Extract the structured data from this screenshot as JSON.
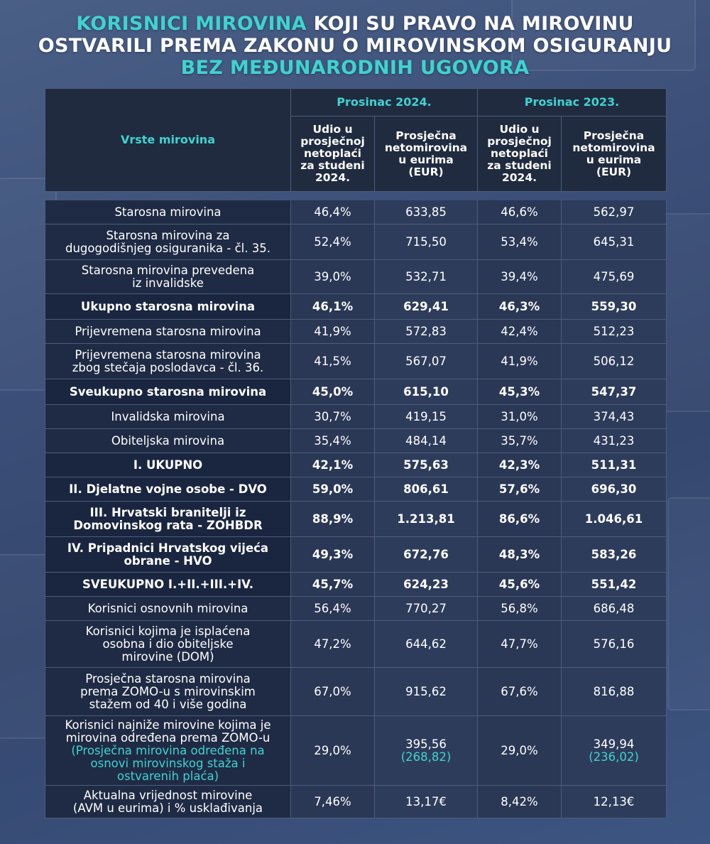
{
  "title": {
    "line1_accent": "KORISNICI MIROVINA",
    "line1_rest": " KOJI SU PRAVO NA MIROVINU",
    "line2": "OSTVARILI PREMA ZAKONU O MIROVINSKOM OSIGURANJU",
    "line3_accent": "BEZ MEĐUNARODNIH UGOVORA"
  },
  "header": {
    "vrste": "Vrste mirovina",
    "period1": "Prosinac 2024.",
    "period2": "Prosinac 2023.",
    "udio_lines": [
      "Udio u",
      "prosječnoj",
      "netoplaći",
      "za studeni",
      "2024."
    ],
    "prosj_lines": [
      "Prosječna",
      "netomirovina",
      "u eurima",
      "(EUR)"
    ]
  },
  "rows": [
    {
      "label": [
        "Starosna mirovina"
      ],
      "u24": "46,4%",
      "p24": "633,85",
      "u23": "46,6%",
      "p23": "562,97",
      "bold": false
    },
    {
      "label": [
        "Starosna mirovina za",
        "dugogodišnjeg osiguranika - čl. 35."
      ],
      "u24": "52,4%",
      "p24": "715,50",
      "u23": "53,4%",
      "p23": "645,31",
      "bold": false
    },
    {
      "label": [
        "Starosna mirovina prevedena",
        "iz invalidske"
      ],
      "u24": "39,0%",
      "p24": "532,71",
      "u23": "39,4%",
      "p23": "475,69",
      "bold": false
    },
    {
      "label": [
        "Ukupno starosna mirovina"
      ],
      "u24": "46,1%",
      "p24": "629,41",
      "u23": "46,3%",
      "p23": "559,30",
      "bold": true
    },
    {
      "label": [
        "Prijevremena starosna mirovina"
      ],
      "u24": "41,9%",
      "p24": "572,83",
      "u23": "42,4%",
      "p23": "512,23",
      "bold": false
    },
    {
      "label": [
        "Prijevremena starosna mirovina",
        "zbog stečaja poslodavca - čl. 36."
      ],
      "u24": "41,5%",
      "p24": "567,07",
      "u23": "41,9%",
      "p23": "506,12",
      "bold": false
    },
    {
      "label": [
        "Sveukupno starosna mirovina"
      ],
      "u24": "45,0%",
      "p24": "615,10",
      "u23": "45,3%",
      "p23": "547,37",
      "bold": true
    },
    {
      "label": [
        "Invalidska mirovina"
      ],
      "u24": "30,7%",
      "p24": "419,15",
      "u23": "31,0%",
      "p23": "374,43",
      "bold": false
    },
    {
      "label": [
        "Obiteljska mirovina"
      ],
      "u24": "35,4%",
      "p24": "484,14",
      "u23": "35,7%",
      "p23": "431,23",
      "bold": false
    },
    {
      "label": [
        "I. UKUPNO"
      ],
      "u24": "42,1%",
      "p24": "575,63",
      "u23": "42,3%",
      "p23": "511,31",
      "bold": true
    },
    {
      "label": [
        "II. Djelatne vojne osobe - DVO"
      ],
      "u24": "59,0%",
      "p24": "806,61",
      "u23": "57,6%",
      "p23": "696,30",
      "bold": true
    },
    {
      "label": [
        "III. Hrvatski branitelji iz",
        "Domovinskog rata - ZOHBDR"
      ],
      "u24": "88,9%",
      "p24": "1.213,81",
      "u23": "86,6%",
      "p23": "1.046,61",
      "bold": true
    },
    {
      "label": [
        "IV. Pripadnici Hrvatskog vijeća",
        "obrane - HVO"
      ],
      "u24": "49,3%",
      "p24": "672,76",
      "u23": "48,3%",
      "p23": "583,26",
      "bold": true
    },
    {
      "label": [
        "SVEUKUPNO I.+II.+III.+IV."
      ],
      "u24": "45,7%",
      "p24": "624,23",
      "u23": "45,6%",
      "p23": "551,42",
      "bold": true
    },
    {
      "label": [
        "Korisnici osnovnih mirovina"
      ],
      "u24": "56,4%",
      "p24": "770,27",
      "u23": "56,8%",
      "p23": "686,48",
      "bold": false
    },
    {
      "label": [
        "Korisnici kojima je isplaćena",
        "osobna i dio obiteljske",
        "mirovine (DOM)"
      ],
      "u24": "47,2%",
      "p24": "644,62",
      "u23": "47,7%",
      "p23": "576,16",
      "bold": false
    },
    {
      "label": [
        "Prosječna starosna mirovina",
        "prema ZOMO-u s mirovinskim",
        "stažem od 40 i više godina"
      ],
      "u24": "67,0%",
      "p24": "915,62",
      "u23": "67,6%",
      "p23": "816,88",
      "bold": false
    },
    {
      "label": [
        "Korisnici najniže mirovine kojima je",
        "mirovina određena prema ZOMO-u"
      ],
      "label_note": [
        "(Prosječna mirovina određena na",
        "osnovi mirovinskog staža i",
        "ostvarenih plaća)"
      ],
      "u24": "29,0%",
      "p24": "395,56",
      "p24_note": "(268,82)",
      "u23": "29,0%",
      "p23": "349,94",
      "p23_note": "(236,02)",
      "bold": false
    },
    {
      "label": [
        "Aktualna vrijednost mirovine",
        "(AVM u eurima) i % usklađivanja"
      ],
      "u24": "7,46%",
      "p24": "13,17€",
      "u23": "8,42%",
      "p23": "12,13€",
      "bold": false
    }
  ]
}
